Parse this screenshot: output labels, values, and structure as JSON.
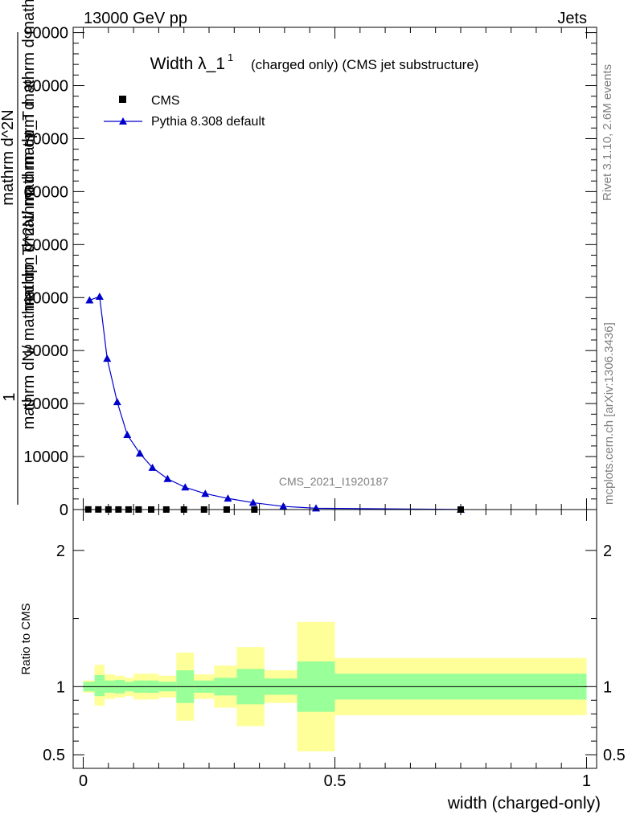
{
  "header": {
    "left": "13000 GeV pp",
    "right": "Jets"
  },
  "side": {
    "rivet": "Rivet 3.1.10,  2.6M events",
    "mcplots": "mcplots.cern.ch [arXiv:1306.3436]"
  },
  "watermark": "CMS_2021_I1920187",
  "chart_data": [
    {
      "type": "line",
      "title_main": "Width λ_1",
      "title_sup": "1",
      "title_sub": "(charged only) (CMS jet substructure)",
      "ylabel_num": "1",
      "ylabel_den_1": "mathrm dN/ mathrm dp_T mathrm d mathrm d",
      "ylabel_den_2": "mathrm d^2N/ mathrm dp_T mathrm d mathrm dlambda",
      "ylabel_den_3": "mathrm d^2N",
      "xlim": [
        -0.02,
        1.02
      ],
      "ylim": [
        0,
        91000
      ],
      "yticks": [
        0,
        10000,
        20000,
        30000,
        40000,
        50000,
        60000,
        70000,
        80000,
        90000
      ],
      "ytick_labels": [
        "0",
        "10000",
        "20000",
        "30000",
        "40000",
        "50000",
        "60000",
        "70000",
        "80000",
        "90000"
      ],
      "legend_position": "top-left",
      "series": [
        {
          "name": "CMS",
          "color": "#000000",
          "marker": "square",
          "x": [
            0.01,
            0.03,
            0.05,
            0.07,
            0.09,
            0.11,
            0.135,
            0.165,
            0.2,
            0.24,
            0.285,
            0.34,
            0.75
          ],
          "y": [
            25,
            22,
            18,
            14,
            12,
            10,
            8,
            6,
            5,
            4,
            3,
            2,
            1
          ]
        },
        {
          "name": "Pythia 8.308 default",
          "color": "#0000cc",
          "marker": "triangle",
          "x": [
            0.0125,
            0.0325,
            0.0475,
            0.0675,
            0.0875,
            0.1125,
            0.1375,
            0.1675,
            0.2025,
            0.2425,
            0.2875,
            0.3375,
            0.3975,
            0.4625,
            0.75
          ],
          "y": [
            39500,
            40200,
            28500,
            20300,
            14100,
            10600,
            7900,
            5800,
            4200,
            3000,
            2100,
            1300,
            600,
            250,
            20
          ]
        }
      ]
    },
    {
      "type": "area",
      "ylabel": "Ratio to CMS",
      "xlabel": "width (charged-only)",
      "xlim": [
        -0.02,
        1.02
      ],
      "xticks": [
        0,
        0.5,
        1
      ],
      "xtick_labels": [
        "0",
        "0.5",
        "1"
      ],
      "ylim": [
        0.4,
        2.3
      ],
      "yticks": [
        0.5,
        1,
        2
      ],
      "ytick_labels": [
        "0.5",
        "1",
        "2"
      ],
      "reference_line": 1,
      "band_colors": {
        "inner": "#99ff99",
        "outer": "#ffff99"
      },
      "bins": [
        {
          "x0": 0.0,
          "x1": 0.0225,
          "in_lo": 0.965,
          "in_hi": 1.035,
          "out_lo": 0.955,
          "out_hi": 1.045
        },
        {
          "x0": 0.0225,
          "x1": 0.0425,
          "in_lo": 0.93,
          "in_hi": 1.085,
          "out_lo": 0.86,
          "out_hi": 1.16
        },
        {
          "x0": 0.0425,
          "x1": 0.0625,
          "in_lo": 0.955,
          "in_hi": 1.045,
          "out_lo": 0.91,
          "out_hi": 1.09
        },
        {
          "x0": 0.0625,
          "x1": 0.0825,
          "in_lo": 0.95,
          "in_hi": 1.05,
          "out_lo": 0.92,
          "out_hi": 1.08
        },
        {
          "x0": 0.0825,
          "x1": 0.1,
          "in_lo": 0.965,
          "in_hi": 1.035,
          "out_lo": 0.93,
          "out_hi": 1.065
        },
        {
          "x0": 0.1,
          "x1": 0.125,
          "in_lo": 0.955,
          "in_hi": 1.045,
          "out_lo": 0.905,
          "out_hi": 1.095
        },
        {
          "x0": 0.125,
          "x1": 0.15,
          "in_lo": 0.955,
          "in_hi": 1.045,
          "out_lo": 0.905,
          "out_hi": 1.095
        },
        {
          "x0": 0.15,
          "x1": 0.185,
          "in_lo": 0.965,
          "in_hi": 1.035,
          "out_lo": 0.92,
          "out_hi": 1.08
        },
        {
          "x0": 0.185,
          "x1": 0.22,
          "in_lo": 0.88,
          "in_hi": 1.12,
          "out_lo": 0.75,
          "out_hi": 1.25
        },
        {
          "x0": 0.22,
          "x1": 0.26,
          "in_lo": 0.955,
          "in_hi": 1.045,
          "out_lo": 0.91,
          "out_hi": 1.09
        },
        {
          "x0": 0.26,
          "x1": 0.305,
          "in_lo": 0.935,
          "in_hi": 1.065,
          "out_lo": 0.845,
          "out_hi": 1.155
        },
        {
          "x0": 0.305,
          "x1": 0.36,
          "in_lo": 0.87,
          "in_hi": 1.13,
          "out_lo": 0.71,
          "out_hi": 1.29
        },
        {
          "x0": 0.36,
          "x1": 0.425,
          "in_lo": 0.94,
          "in_hi": 1.06,
          "out_lo": 0.88,
          "out_hi": 1.12
        },
        {
          "x0": 0.425,
          "x1": 0.5,
          "in_lo": 0.815,
          "in_hi": 1.185,
          "out_lo": 0.525,
          "out_hi": 1.475
        },
        {
          "x0": 0.5,
          "x1": 1.0,
          "in_lo": 0.905,
          "in_hi": 1.095,
          "out_lo": 0.79,
          "out_hi": 1.21
        }
      ]
    }
  ]
}
